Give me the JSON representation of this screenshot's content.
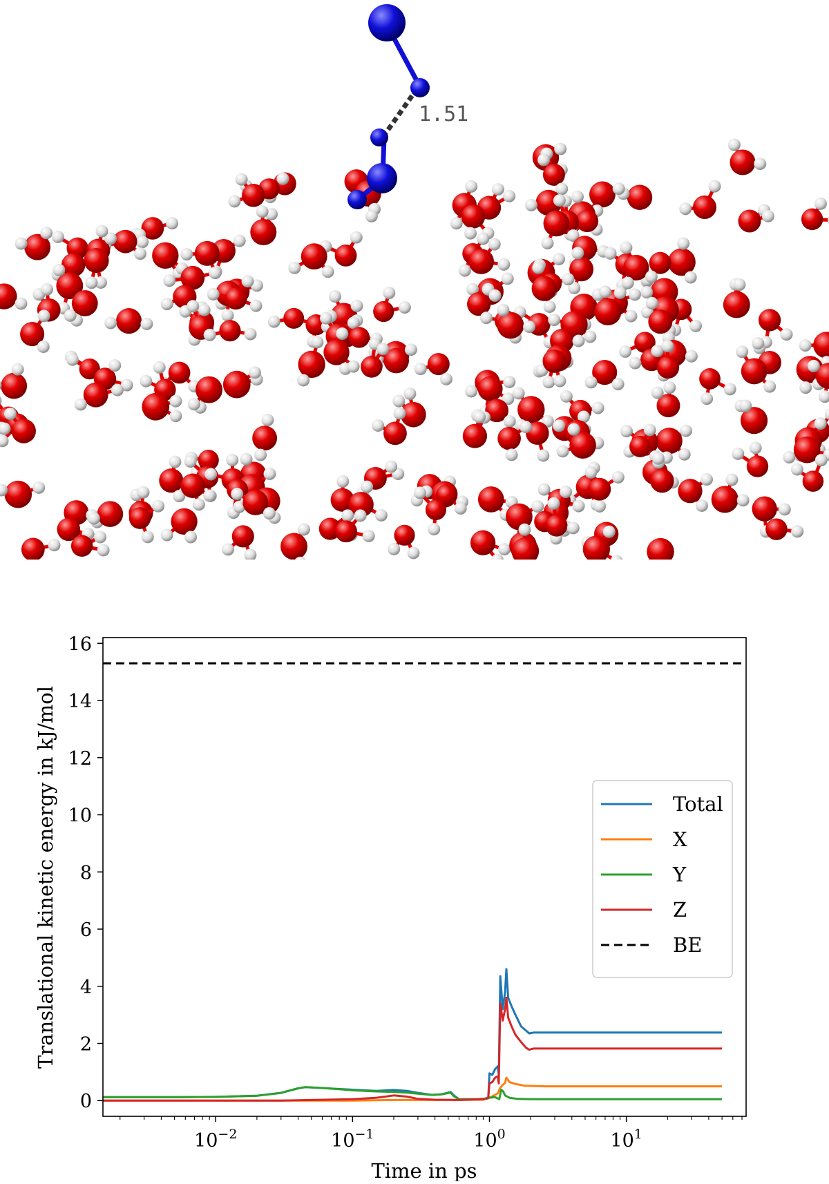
{
  "molecule": {
    "distance_label": "1.51",
    "colors": {
      "adsorbate": "#1010d8",
      "oxygen": "#e00000",
      "hydrogen": "#e8e8e8",
      "bond_dash": "#333333"
    }
  },
  "chart_data": {
    "type": "line",
    "xscale": "log",
    "xlabel": "Time in ps",
    "ylabel": "Translational kinetic energy in kJ/mol",
    "xlim": [
      0.0015,
      75
    ],
    "ylim": [
      -0.55,
      16.2
    ],
    "xticks": [
      {
        "value": 0.01,
        "label": "10",
        "exp": "−2"
      },
      {
        "value": 0.1,
        "label": "10",
        "exp": "−1"
      },
      {
        "value": 1,
        "label": "10",
        "exp": "0"
      },
      {
        "value": 10,
        "label": "10",
        "exp": "1"
      }
    ],
    "yticks": [
      0,
      2,
      4,
      6,
      8,
      10,
      12,
      14,
      16
    ],
    "legend_position": "center-right",
    "hline": {
      "name": "BE",
      "y": 15.3,
      "color": "#000000",
      "dash": true
    },
    "series": [
      {
        "name": "Total",
        "color": "#1f77b4",
        "points": [
          [
            0.0015,
            0.12
          ],
          [
            0.005,
            0.12
          ],
          [
            0.01,
            0.13
          ],
          [
            0.02,
            0.17
          ],
          [
            0.03,
            0.27
          ],
          [
            0.04,
            0.43
          ],
          [
            0.045,
            0.47
          ],
          [
            0.055,
            0.45
          ],
          [
            0.07,
            0.42
          ],
          [
            0.1,
            0.38
          ],
          [
            0.15,
            0.34
          ],
          [
            0.2,
            0.37
          ],
          [
            0.25,
            0.34
          ],
          [
            0.3,
            0.27
          ],
          [
            0.38,
            0.2
          ],
          [
            0.45,
            0.22
          ],
          [
            0.52,
            0.3
          ],
          [
            0.55,
            0.18
          ],
          [
            0.6,
            0.05
          ],
          [
            0.8,
            0.05
          ],
          [
            0.95,
            0.07
          ],
          [
            0.98,
            0.12
          ],
          [
            1.0,
            0.95
          ],
          [
            1.05,
            0.9
          ],
          [
            1.1,
            1.1
          ],
          [
            1.15,
            1.2
          ],
          [
            1.17,
            0.9
          ],
          [
            1.2,
            4.35
          ],
          [
            1.25,
            3.2
          ],
          [
            1.3,
            3.8
          ],
          [
            1.33,
            4.6
          ],
          [
            1.37,
            3.6
          ],
          [
            1.45,
            3.3
          ],
          [
            1.55,
            3.0
          ],
          [
            1.7,
            2.6
          ],
          [
            1.85,
            2.45
          ],
          [
            1.95,
            2.35
          ],
          [
            2.1,
            2.38
          ],
          [
            3,
            2.38
          ],
          [
            10,
            2.38
          ],
          [
            50,
            2.38
          ]
        ]
      },
      {
        "name": "X",
        "color": "#ff7f0e",
        "points": [
          [
            0.0015,
            0.0
          ],
          [
            0.1,
            0.0
          ],
          [
            0.2,
            0.02
          ],
          [
            0.5,
            0.02
          ],
          [
            0.9,
            0.03
          ],
          [
            1.0,
            0.1
          ],
          [
            1.15,
            0.25
          ],
          [
            1.2,
            0.45
          ],
          [
            1.25,
            0.55
          ],
          [
            1.3,
            0.62
          ],
          [
            1.33,
            0.8
          ],
          [
            1.4,
            0.65
          ],
          [
            1.55,
            0.58
          ],
          [
            1.8,
            0.52
          ],
          [
            2.5,
            0.5
          ],
          [
            10,
            0.5
          ],
          [
            50,
            0.5
          ]
        ]
      },
      {
        "name": "Y",
        "color": "#2ca02c",
        "points": [
          [
            0.0015,
            0.12
          ],
          [
            0.005,
            0.12
          ],
          [
            0.01,
            0.13
          ],
          [
            0.02,
            0.17
          ],
          [
            0.03,
            0.27
          ],
          [
            0.04,
            0.43
          ],
          [
            0.045,
            0.47
          ],
          [
            0.055,
            0.45
          ],
          [
            0.07,
            0.42
          ],
          [
            0.1,
            0.36
          ],
          [
            0.15,
            0.32
          ],
          [
            0.2,
            0.3
          ],
          [
            0.25,
            0.28
          ],
          [
            0.3,
            0.24
          ],
          [
            0.38,
            0.2
          ],
          [
            0.45,
            0.22
          ],
          [
            0.52,
            0.28
          ],
          [
            0.55,
            0.15
          ],
          [
            0.6,
            0.05
          ],
          [
            0.8,
            0.05
          ],
          [
            0.95,
            0.06
          ],
          [
            1.0,
            0.1
          ],
          [
            1.1,
            0.12
          ],
          [
            1.18,
            0.05
          ],
          [
            1.22,
            0.38
          ],
          [
            1.26,
            0.32
          ],
          [
            1.3,
            0.18
          ],
          [
            1.4,
            0.1
          ],
          [
            1.6,
            0.06
          ],
          [
            2,
            0.05
          ],
          [
            10,
            0.05
          ],
          [
            50,
            0.05
          ]
        ]
      },
      {
        "name": "Z",
        "color": "#d62728",
        "points": [
          [
            0.0015,
            0.0
          ],
          [
            0.03,
            0.0
          ],
          [
            0.05,
            0.02
          ],
          [
            0.1,
            0.05
          ],
          [
            0.15,
            0.1
          ],
          [
            0.2,
            0.18
          ],
          [
            0.25,
            0.14
          ],
          [
            0.3,
            0.06
          ],
          [
            0.4,
            0.03
          ],
          [
            0.6,
            0.02
          ],
          [
            0.9,
            0.05
          ],
          [
            0.98,
            0.1
          ],
          [
            1.0,
            0.6
          ],
          [
            1.05,
            0.65
          ],
          [
            1.1,
            0.8
          ],
          [
            1.15,
            0.85
          ],
          [
            1.17,
            0.6
          ],
          [
            1.2,
            3.4
          ],
          [
            1.25,
            2.8
          ],
          [
            1.3,
            3.2
          ],
          [
            1.33,
            3.6
          ],
          [
            1.37,
            2.9
          ],
          [
            1.45,
            2.6
          ],
          [
            1.55,
            2.3
          ],
          [
            1.7,
            2.05
          ],
          [
            1.85,
            1.85
          ],
          [
            1.95,
            1.78
          ],
          [
            2.1,
            1.82
          ],
          [
            3,
            1.82
          ],
          [
            10,
            1.82
          ],
          [
            50,
            1.82
          ]
        ]
      }
    ]
  }
}
